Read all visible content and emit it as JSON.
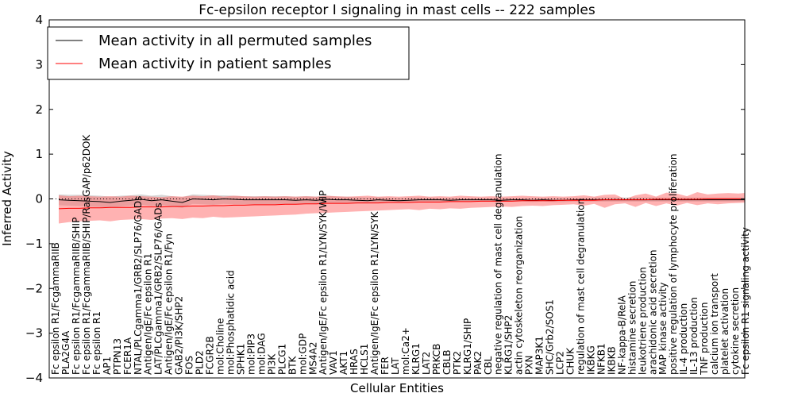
{
  "chart_data": {
    "type": "line",
    "title": "Fc-epsilon receptor I signaling in mast cells -- 222 samples",
    "xlabel": "Cellular Entities",
    "ylabel": "Inferred Activity",
    "ylim": [
      -4,
      4
    ],
    "yticks": [
      "−4",
      "−3",
      "−2",
      "−1",
      "0",
      "1",
      "2",
      "3",
      "4"
    ],
    "legend": {
      "placement": "top-left",
      "entries": [
        {
          "label": "Mean activity in all permuted samples",
          "color": "#000000"
        },
        {
          "label": "Mean activity in patient samples",
          "color": "#ff0000"
        }
      ]
    },
    "categories": [
      "Fc epsilon R1/FcgammaRIIB",
      "PLA2G4A",
      "Fc epsilon R1/FcgammaRIIB/SHIP",
      "Fc epsilon R1/FcgammaRIIB/SHIP/RasGAP/p62DOK",
      "Fc epsilon R1",
      "AP1",
      "PTPN13",
      "FCER1A",
      "NTAL/PLCgamma1/GRB2/SLP76/GADs",
      "Antigen/IgE/Fc epsilon R1",
      "LAT/PLCgamma1/GRB2/SLP76/GADs",
      "Antigen/IgE/Fc epsilon R1/Fyn",
      "GAB2/PI3K/SHP2",
      "FOS",
      "PLD2",
      "FCGR2B",
      "mol:Choline",
      "mol:Phosphatidic acid",
      "SPHK1",
      "mol:PIP3",
      "mol:DAG",
      "PI3K",
      "PLCG1",
      "BTK",
      "mol:GDP",
      "MS4A2",
      "Antigen/IgE/Fc epsilon R1/LYN/SYK/WIP",
      "VAV1",
      "AKT1",
      "HRAS",
      "HCLS1",
      "Antigen/IgE/Fc epsilon R1/LYN/SYK",
      "FER",
      "LAT",
      "mol:Ca2+",
      "KLRG1",
      "LAT2",
      "PRKCB",
      "CBLB",
      "PTK2",
      "KLRG1/SHIP",
      "PAK2",
      "CBL",
      "negative regulation of mast cell degranulation",
      "KLRG1/SHP2",
      "actin cytoskeleton reorganization",
      "PXN",
      "MAP3K1",
      "SHC/Grb2/SOS1",
      "LCP2",
      "CHUK",
      "regulation of mast cell degranulation",
      "IKBKG",
      "NFKB1",
      "IKBKB",
      "NF-kappa-B/RelA",
      "histamine secretion",
      "leukotriene production",
      "arachidonic acid secretion",
      "MAP kinase activity",
      "positive regulation of lymphocyte proliferation",
      "IL-4 production",
      "IL-13 production",
      "TNF production",
      "calcium ion transport",
      "platelet activation",
      "cytokine secretion",
      "Fc epsilon R1 signaling activity"
    ],
    "series": [
      {
        "name": "Mean activity in all permuted samples",
        "color": "#000000",
        "values": [
          -0.02,
          -0.03,
          -0.04,
          -0.05,
          -0.06,
          -0.08,
          -0.05,
          -0.03,
          -0.01,
          -0.04,
          -0.02,
          -0.05,
          -0.08,
          0.0,
          -0.01,
          -0.02,
          0.0,
          -0.01,
          -0.02,
          -0.02,
          -0.02,
          -0.02,
          -0.02,
          -0.03,
          -0.02,
          -0.03,
          -0.01,
          -0.02,
          -0.02,
          -0.03,
          -0.04,
          -0.02,
          -0.03,
          -0.04,
          -0.03,
          -0.02,
          -0.02,
          -0.02,
          -0.03,
          -0.02,
          -0.02,
          -0.02,
          -0.02,
          -0.03,
          -0.02,
          -0.02,
          -0.03,
          -0.02,
          -0.03,
          -0.03,
          -0.02,
          -0.02,
          -0.02,
          -0.02,
          -0.02,
          -0.02,
          -0.02,
          -0.02,
          -0.02,
          -0.02,
          -0.02,
          -0.02,
          -0.02,
          -0.02,
          -0.02,
          -0.02,
          -0.02,
          -0.02
        ],
        "band_upper": [
          0.1,
          0.09,
          0.09,
          0.08,
          0.07,
          0.05,
          0.07,
          0.08,
          0.1,
          0.07,
          0.09,
          0.06,
          0.04,
          0.1,
          0.09,
          0.08,
          0.08,
          0.07,
          0.06,
          0.06,
          0.06,
          0.06,
          0.06,
          0.05,
          0.06,
          0.05,
          0.07,
          0.05,
          0.05,
          0.04,
          0.03,
          0.04,
          0.03,
          0.02,
          0.03,
          0.03,
          0.03,
          0.02,
          0.02,
          0.02,
          0.02,
          0.02,
          0.02,
          0.02,
          0.02,
          0.02,
          0.02,
          0.02,
          0.02,
          0.02,
          0.02,
          0.02,
          0.03,
          0.03,
          0.03,
          0.03,
          0.03,
          0.03,
          0.03,
          0.03,
          0.03,
          0.03,
          0.03,
          0.03,
          0.03,
          0.03,
          0.03,
          0.03
        ],
        "band_lower": [
          -0.14,
          -0.15,
          -0.16,
          -0.17,
          -0.18,
          -0.2,
          -0.17,
          -0.15,
          -0.13,
          -0.16,
          -0.14,
          -0.17,
          -0.2,
          -0.11,
          -0.12,
          -0.13,
          -0.11,
          -0.12,
          -0.12,
          -0.12,
          -0.12,
          -0.12,
          -0.12,
          -0.12,
          -0.11,
          -0.12,
          -0.1,
          -0.1,
          -0.1,
          -0.1,
          -0.1,
          -0.08,
          -0.08,
          -0.08,
          -0.08,
          -0.07,
          -0.07,
          -0.07,
          -0.07,
          -0.06,
          -0.06,
          -0.06,
          -0.06,
          -0.06,
          -0.06,
          -0.06,
          -0.07,
          -0.06,
          -0.07,
          -0.07,
          -0.06,
          -0.06,
          -0.06,
          -0.06,
          -0.06,
          -0.06,
          -0.06,
          -0.06,
          -0.06,
          -0.06,
          -0.06,
          -0.06,
          -0.06,
          -0.06,
          -0.06,
          -0.06,
          -0.06,
          -0.06
        ]
      },
      {
        "name": "Mean activity in patient samples",
        "color": "#ff0000",
        "values": [
          -0.22,
          -0.21,
          -0.21,
          -0.2,
          -0.2,
          -0.19,
          -0.19,
          -0.19,
          -0.18,
          -0.18,
          -0.18,
          -0.17,
          -0.17,
          -0.16,
          -0.16,
          -0.15,
          -0.15,
          -0.14,
          -0.14,
          -0.13,
          -0.13,
          -0.13,
          -0.12,
          -0.12,
          -0.11,
          -0.11,
          -0.1,
          -0.1,
          -0.1,
          -0.09,
          -0.09,
          -0.09,
          -0.08,
          -0.08,
          -0.08,
          -0.07,
          -0.07,
          -0.07,
          -0.06,
          -0.06,
          -0.06,
          -0.05,
          -0.05,
          -0.05,
          -0.05,
          -0.04,
          -0.04,
          -0.04,
          -0.04,
          -0.03,
          -0.03,
          -0.03,
          -0.03,
          -0.02,
          -0.02,
          -0.02,
          -0.02,
          -0.02,
          -0.01,
          -0.01,
          -0.01,
          -0.01,
          -0.01,
          0.0,
          0.0,
          0.0,
          0.0,
          0.0
        ],
        "band_upper": [
          0.08,
          0.06,
          0.07,
          0.06,
          0.05,
          0.06,
          0.05,
          0.07,
          0.06,
          0.05,
          0.04,
          0.06,
          0.05,
          0.07,
          0.06,
          0.08,
          0.05,
          0.07,
          0.06,
          0.05,
          0.06,
          0.05,
          0.06,
          0.05,
          0.06,
          0.05,
          0.07,
          0.06,
          0.05,
          0.06,
          0.07,
          0.05,
          0.06,
          0.05,
          0.06,
          0.07,
          0.05,
          0.06,
          0.05,
          0.07,
          0.06,
          0.05,
          0.06,
          0.05,
          0.06,
          0.07,
          0.06,
          0.05,
          0.06,
          0.05,
          0.06,
          0.08,
          0.05,
          0.09,
          0.1,
          0.0,
          0.08,
          0.12,
          0.05,
          0.14,
          0.12,
          0.06,
          0.15,
          0.1,
          0.12,
          0.13,
          0.12,
          0.14
        ],
        "band_lower": [
          -0.55,
          -0.52,
          -0.5,
          -0.49,
          -0.48,
          -0.5,
          -0.47,
          -0.46,
          -0.45,
          -0.47,
          -0.44,
          -0.43,
          -0.45,
          -0.42,
          -0.43,
          -0.4,
          -0.42,
          -0.41,
          -0.4,
          -0.39,
          -0.38,
          -0.37,
          -0.36,
          -0.35,
          -0.33,
          -0.32,
          -0.31,
          -0.3,
          -0.29,
          -0.28,
          -0.27,
          -0.26,
          -0.25,
          -0.24,
          -0.23,
          -0.25,
          -0.22,
          -0.23,
          -0.21,
          -0.22,
          -0.2,
          -0.19,
          -0.18,
          -0.17,
          -0.18,
          -0.16,
          -0.15,
          -0.16,
          -0.14,
          -0.13,
          -0.12,
          -0.15,
          -0.11,
          -0.2,
          -0.12,
          -0.1,
          -0.18,
          -0.09,
          -0.16,
          -0.1,
          -0.15,
          -0.09,
          -0.14,
          -0.1,
          -0.12,
          -0.1,
          -0.09,
          -0.08
        ]
      }
    ]
  }
}
